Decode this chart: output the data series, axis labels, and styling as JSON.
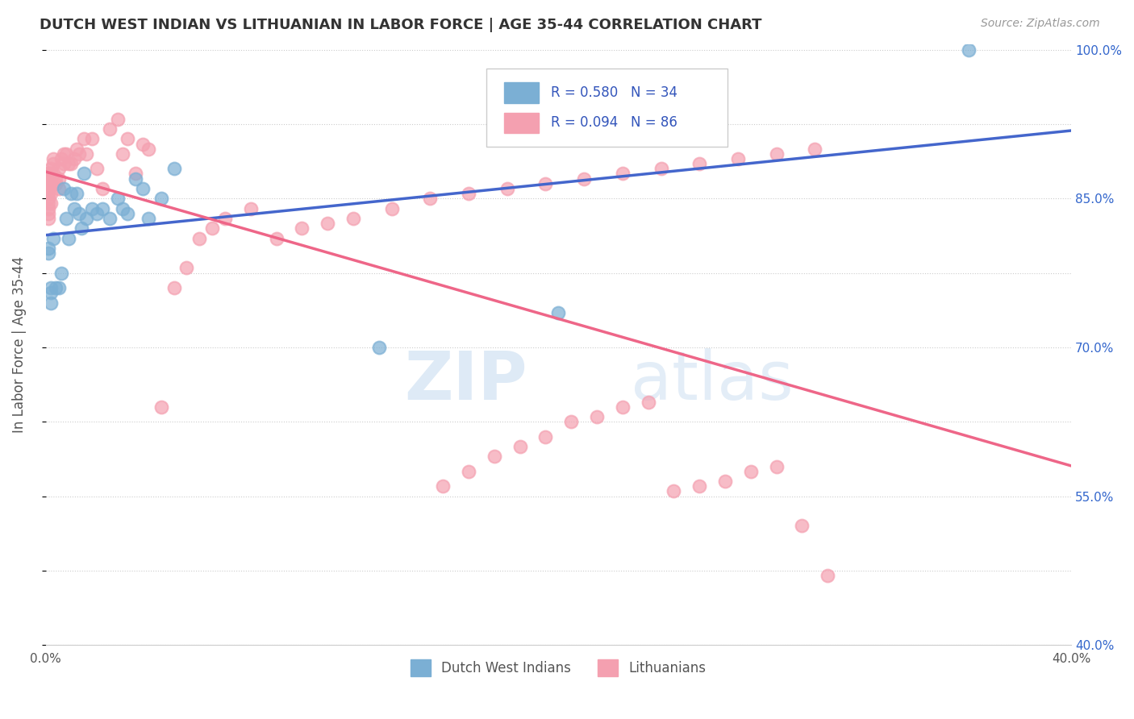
{
  "title": "DUTCH WEST INDIAN VS LITHUANIAN IN LABOR FORCE | AGE 35-44 CORRELATION CHART",
  "source": "Source: ZipAtlas.com",
  "ylabel": "In Labor Force | Age 35-44",
  "x_min": 0.0,
  "x_max": 0.4,
  "y_min": 0.4,
  "y_max": 1.005,
  "x_ticks": [
    0.0,
    0.05,
    0.1,
    0.15,
    0.2,
    0.25,
    0.3,
    0.35,
    0.4
  ],
  "y_ticks_right": [
    0.4,
    0.475,
    0.55,
    0.625,
    0.7,
    0.775,
    0.85,
    0.925,
    1.0
  ],
  "y_tick_labels_right": [
    "40.0%",
    "",
    "55.0%",
    "",
    "70.0%",
    "",
    "85.0%",
    "",
    "100.0%"
  ],
  "legend_R_blue": "0.580",
  "legend_N_blue": "34",
  "legend_R_pink": "0.094",
  "legend_N_pink": "86",
  "blue_color": "#7BAFD4",
  "pink_color": "#F4A0B0",
  "line_blue": "#4466CC",
  "line_pink": "#EE6688",
  "dutch_x": [
    0.001,
    0.001,
    0.002,
    0.002,
    0.002,
    0.003,
    0.004,
    0.005,
    0.006,
    0.007,
    0.008,
    0.009,
    0.01,
    0.011,
    0.012,
    0.013,
    0.014,
    0.015,
    0.016,
    0.018,
    0.02,
    0.022,
    0.025,
    0.028,
    0.03,
    0.032,
    0.035,
    0.038,
    0.04,
    0.045,
    0.05,
    0.13,
    0.2,
    0.36
  ],
  "dutch_y": [
    0.795,
    0.8,
    0.76,
    0.755,
    0.745,
    0.81,
    0.76,
    0.76,
    0.775,
    0.86,
    0.83,
    0.81,
    0.855,
    0.84,
    0.855,
    0.835,
    0.82,
    0.875,
    0.83,
    0.84,
    0.835,
    0.84,
    0.83,
    0.85,
    0.84,
    0.835,
    0.87,
    0.86,
    0.83,
    0.85,
    0.88,
    0.7,
    0.735,
    1.0
  ],
  "lith_x": [
    0.001,
    0.001,
    0.001,
    0.001,
    0.001,
    0.001,
    0.001,
    0.001,
    0.001,
    0.001,
    0.001,
    0.001,
    0.002,
    0.002,
    0.002,
    0.002,
    0.002,
    0.002,
    0.003,
    0.003,
    0.003,
    0.004,
    0.004,
    0.005,
    0.005,
    0.005,
    0.006,
    0.007,
    0.007,
    0.008,
    0.009,
    0.01,
    0.011,
    0.012,
    0.013,
    0.015,
    0.016,
    0.018,
    0.02,
    0.022,
    0.025,
    0.028,
    0.03,
    0.032,
    0.035,
    0.038,
    0.04,
    0.045,
    0.05,
    0.055,
    0.06,
    0.065,
    0.07,
    0.08,
    0.09,
    0.1,
    0.11,
    0.12,
    0.135,
    0.15,
    0.165,
    0.18,
    0.195,
    0.21,
    0.225,
    0.24,
    0.255,
    0.27,
    0.285,
    0.3,
    0.155,
    0.165,
    0.175,
    0.185,
    0.195,
    0.205,
    0.215,
    0.225,
    0.235,
    0.245,
    0.255,
    0.265,
    0.275,
    0.285,
    0.295,
    0.305
  ],
  "lith_y": [
    0.87,
    0.875,
    0.875,
    0.87,
    0.865,
    0.86,
    0.855,
    0.85,
    0.845,
    0.84,
    0.835,
    0.83,
    0.88,
    0.875,
    0.87,
    0.865,
    0.855,
    0.845,
    0.89,
    0.885,
    0.875,
    0.87,
    0.865,
    0.88,
    0.87,
    0.86,
    0.89,
    0.895,
    0.885,
    0.895,
    0.885,
    0.885,
    0.89,
    0.9,
    0.895,
    0.91,
    0.895,
    0.91,
    0.88,
    0.86,
    0.92,
    0.93,
    0.895,
    0.91,
    0.875,
    0.905,
    0.9,
    0.64,
    0.76,
    0.78,
    0.81,
    0.82,
    0.83,
    0.84,
    0.81,
    0.82,
    0.825,
    0.83,
    0.84,
    0.85,
    0.855,
    0.86,
    0.865,
    0.87,
    0.875,
    0.88,
    0.885,
    0.89,
    0.895,
    0.9,
    0.56,
    0.575,
    0.59,
    0.6,
    0.61,
    0.625,
    0.63,
    0.64,
    0.645,
    0.555,
    0.56,
    0.565,
    0.575,
    0.58,
    0.52,
    0.47
  ]
}
